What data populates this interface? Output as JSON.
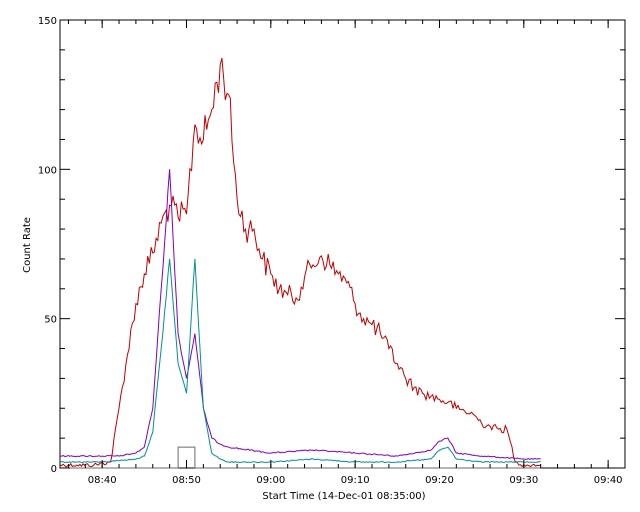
{
  "chart_data": {
    "type": "line",
    "xlabel": "Start Time (14-Dec-01 08:35:00)",
    "ylabel": "Count Rate",
    "xlim": [
      "08:35",
      "09:42"
    ],
    "ylim": [
      0,
      150
    ],
    "x_ticks": [
      "08:40",
      "08:50",
      "09:00",
      "09:10",
      "09:20",
      "09:30",
      "09:40"
    ],
    "y_ticks": [
      0,
      50,
      100,
      150
    ],
    "grid": false,
    "series": [
      {
        "color": "#c00000",
        "x": [
          "08:35",
          "08:37",
          "08:39",
          "08:41",
          "08:42",
          "08:43",
          "08:44",
          "08:45",
          "08:46",
          "08:47",
          "08:48",
          "08:49",
          "08:50",
          "08:51",
          "08:52",
          "08:53",
          "08:54",
          "08:55",
          "08:56",
          "08:57",
          "08:58",
          "08:59",
          "09:00",
          "09:01",
          "09:02",
          "09:03",
          "09:04",
          "09:05",
          "09:06",
          "09:07",
          "09:08",
          "09:09",
          "09:10",
          "09:11",
          "09:12",
          "09:13",
          "09:14",
          "09:15",
          "09:16",
          "09:17",
          "09:18",
          "09:19",
          "09:20",
          "09:21",
          "09:22",
          "09:23",
          "09:24",
          "09:25",
          "09:26",
          "09:27",
          "09:28",
          "09:29",
          "09:30",
          "09:31",
          "09:32"
        ],
        "values": [
          1,
          1,
          1,
          2,
          20,
          38,
          55,
          65,
          72,
          82,
          88,
          84,
          85,
          115,
          110,
          120,
          135,
          125,
          90,
          80,
          80,
          70,
          65,
          60,
          58,
          57,
          64,
          68,
          71,
          68,
          65,
          62,
          55,
          50,
          48,
          45,
          40,
          35,
          30,
          27,
          25,
          24,
          23,
          22,
          20,
          19,
          18,
          15,
          14,
          13,
          13,
          2,
          1,
          1,
          1
        ]
      },
      {
        "color": "#7f00bf",
        "x": [
          "08:35",
          "08:40",
          "08:42",
          "08:44",
          "08:45",
          "08:46",
          "08:47",
          "08:48",
          "08:49",
          "08:50",
          "08:51",
          "08:52",
          "08:53",
          "08:54",
          "08:55",
          "09:00",
          "09:05",
          "09:10",
          "09:15",
          "09:19",
          "09:20",
          "09:21",
          "09:22",
          "09:25",
          "09:30",
          "09:32"
        ],
        "values": [
          4,
          4,
          4,
          5,
          7,
          20,
          60,
          100,
          45,
          30,
          45,
          20,
          10,
          8,
          7,
          5,
          6,
          5,
          4,
          6,
          9,
          10,
          5,
          4,
          3,
          3
        ]
      },
      {
        "color": "#009090",
        "x": [
          "08:35",
          "08:40",
          "08:44",
          "08:45",
          "08:46",
          "08:47",
          "08:48",
          "08:49",
          "08:50",
          "08:51",
          "08:52",
          "08:53",
          "08:54",
          "08:55",
          "09:00",
          "09:05",
          "09:10",
          "09:15",
          "09:19",
          "09:20",
          "09:21",
          "09:22",
          "09:25",
          "09:30",
          "09:32"
        ],
        "values": [
          2,
          2,
          3,
          4,
          12,
          40,
          70,
          35,
          25,
          70,
          20,
          5,
          3,
          2,
          2,
          3,
          2,
          2,
          3,
          6,
          7,
          3,
          2,
          2,
          2
        ]
      },
      {
        "color": "#6a6a6a",
        "x": [
          "08:35",
          "08:49",
          "08:49",
          "08:51",
          "08:51",
          "09:32"
        ],
        "values": [
          0,
          0,
          7,
          7,
          0,
          0
        ]
      }
    ]
  }
}
